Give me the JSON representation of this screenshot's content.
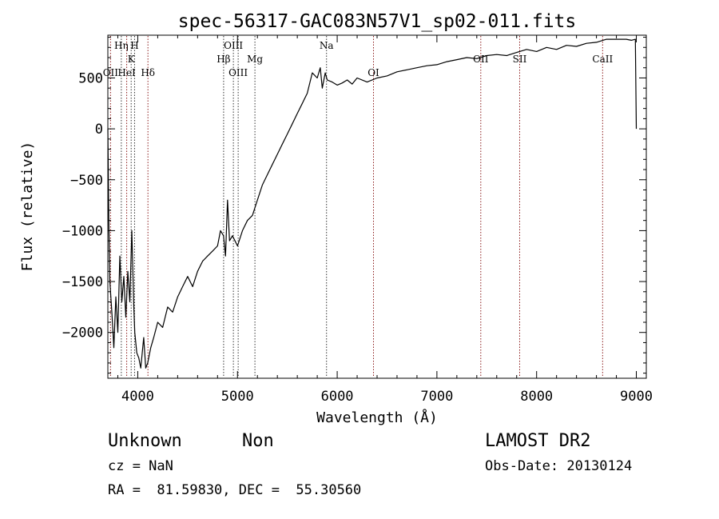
{
  "chart_data": {
    "type": "line",
    "title": "spec-56317-GAC083N57V1_sp02-011.fits",
    "xlabel": "Wavelength (Å)",
    "ylabel": "Flux (relative)",
    "xlim": [
      3700,
      9100
    ],
    "ylim": [
      -2450,
      920
    ],
    "xticks": [
      4000,
      5000,
      6000,
      7000,
      8000,
      9000
    ],
    "yticks": [
      -2000,
      -1500,
      -1000,
      -500,
      0,
      500
    ],
    "grid": false,
    "series": [
      {
        "x": [
          3700,
          3710,
          3720,
          3740,
          3760,
          3780,
          3800,
          3820,
          3840,
          3860,
          3880,
          3900,
          3920,
          3940,
          3960,
          3970,
          3990,
          4010,
          4030,
          4060,
          4080,
          4100,
          4130,
          4160,
          4200,
          4250,
          4300,
          4350,
          4400,
          4450,
          4500,
          4550,
          4600,
          4650,
          4700,
          4750,
          4800,
          4830,
          4860,
          4880,
          4900,
          4920,
          4950,
          5000,
          5050,
          5100,
          5150,
          5200,
          5250,
          5300,
          5350,
          5400,
          5450,
          5500,
          5550,
          5600,
          5650,
          5700,
          5750,
          5800,
          5830,
          5850,
          5880,
          5900,
          5950,
          6000,
          6050,
          6100,
          6150,
          6200,
          6300,
          6400,
          6500,
          6600,
          6700,
          6800,
          6900,
          7000,
          7100,
          7200,
          7300,
          7400,
          7500,
          7600,
          7700,
          7800,
          7900,
          8000,
          8100,
          8200,
          8300,
          8400,
          8500,
          8600,
          8700,
          8800,
          8900,
          8950,
          8990,
          9000
        ],
        "y": [
          0,
          -900,
          -1500,
          -1800,
          -2150,
          -1650,
          -2000,
          -1250,
          -1700,
          -1450,
          -1850,
          -1400,
          -1700,
          -1000,
          -1750,
          -2000,
          -2200,
          -2250,
          -2350,
          -2050,
          -2350,
          -2300,
          -2150,
          -2050,
          -1900,
          -1950,
          -1750,
          -1800,
          -1650,
          -1550,
          -1450,
          -1550,
          -1400,
          -1300,
          -1250,
          -1200,
          -1150,
          -1000,
          -1050,
          -1250,
          -700,
          -1100,
          -1050,
          -1150,
          -1000,
          -900,
          -850,
          -700,
          -550,
          -450,
          -350,
          -250,
          -150,
          -50,
          50,
          150,
          250,
          350,
          550,
          500,
          600,
          400,
          550,
          480,
          460,
          430,
          450,
          480,
          440,
          500,
          460,
          500,
          520,
          560,
          580,
          600,
          620,
          630,
          660,
          680,
          700,
          690,
          720,
          730,
          720,
          750,
          780,
          760,
          800,
          780,
          820,
          810,
          840,
          850,
          880,
          880,
          880,
          870,
          880,
          0
        ]
      }
    ],
    "lines": [
      {
        "label": "OII",
        "x": 3727,
        "row": 3
      },
      {
        "label": "Hη",
        "x": 3835,
        "row": 0
      },
      {
        "label": "HeI",
        "x": 3889,
        "row": 3
      },
      {
        "label": "K",
        "x": 3934,
        "row": 1
      },
      {
        "label": "H",
        "x": 3968,
        "row": 0
      },
      {
        "label": "Hδ",
        "x": 4102,
        "row": 3
      },
      {
        "label": "Hβ",
        "x": 4861,
        "row": 2
      },
      {
        "label": "OIII",
        "x": 4959,
        "row": 0
      },
      {
        "label": "OIII",
        "x": 5007,
        "row": 3
      },
      {
        "label": "Mg",
        "x": 5175,
        "row": 2
      },
      {
        "label": "Na",
        "x": 5893,
        "row": 0
      },
      {
        "label": "OI",
        "x": 6364,
        "row": 3
      },
      {
        "label": "OII",
        "x": 7440,
        "row": 2
      },
      {
        "label": "SII",
        "x": 7830,
        "row": 2
      },
      {
        "label": "CaII",
        "x": 8662,
        "row": 1
      }
    ]
  },
  "info": {
    "object_class": "Unknown",
    "object_subclass": "Non",
    "survey": "LAMOST DR2",
    "redshift_line": "cz = NaN",
    "obs_date": "Obs-Date: 20130124",
    "coords": "RA =  81.59830, DEC =  55.30560"
  }
}
